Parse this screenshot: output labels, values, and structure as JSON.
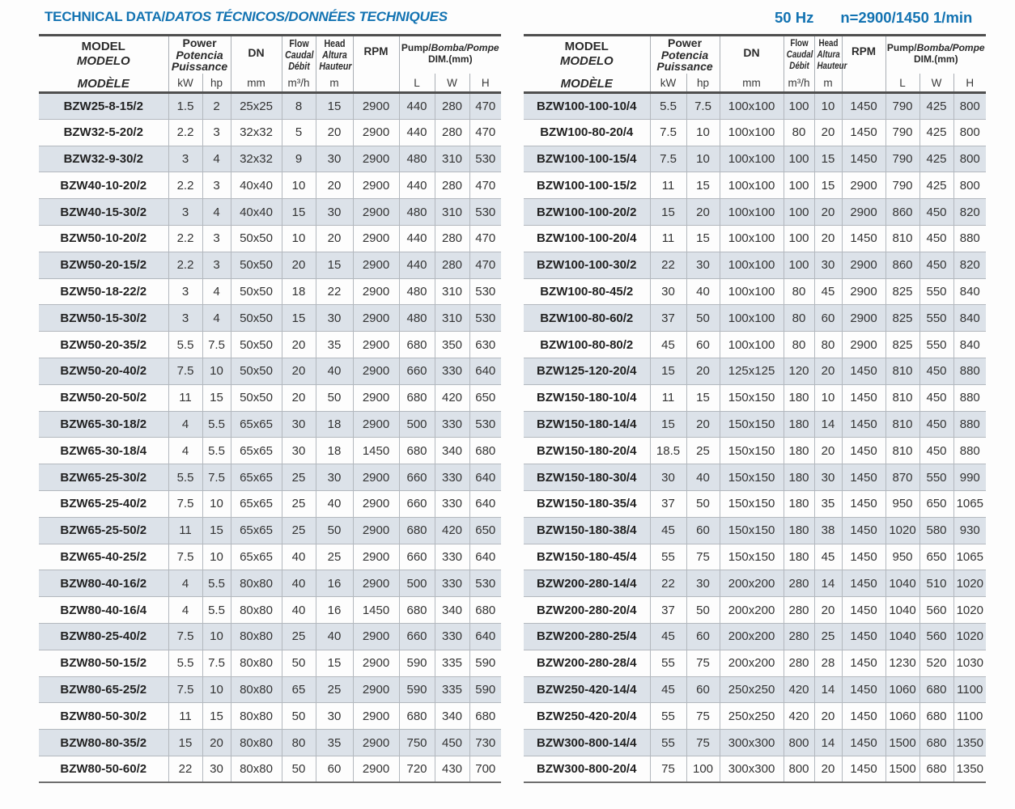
{
  "title": {
    "en": "TECHNICAL DATA/",
    "intl": "DATOS TÉCNICOS/DONNÉES TECHNIQUES"
  },
  "frequency": "50 Hz",
  "speed": "n=2900/1450 1/min",
  "columns": {
    "model": {
      "en": "MODEL",
      "es": "MODELO",
      "fr": "MODÈLE"
    },
    "power": {
      "en": "Power",
      "es": "Potencia",
      "fr": "Puissance",
      "unit_kw": "kW",
      "unit_hp": "hp"
    },
    "dn": {
      "label": "DN",
      "unit": "mm"
    },
    "flow": {
      "en": "Flow",
      "es": "Caudal",
      "fr": "Débit",
      "unit": "m³/h"
    },
    "head": {
      "en": "Head",
      "es": "Altura",
      "fr": "Hauteur",
      "unit": "m"
    },
    "rpm": {
      "label": "RPM"
    },
    "dim": {
      "line1_en": "Pump/",
      "line1_intl": "Bomba/Pompe",
      "line2": "DIM.(mm)",
      "unit_l": "L",
      "unit_w": "W",
      "unit_h": "H"
    }
  },
  "tables": {
    "left": {
      "rows": [
        [
          "BZW25-8-15/2",
          "1.5",
          "2",
          "25x25",
          "8",
          "15",
          "2900",
          "440",
          "280",
          "470"
        ],
        [
          "BZW32-5-20/2",
          "2.2",
          "3",
          "32x32",
          "5",
          "20",
          "2900",
          "440",
          "280",
          "470"
        ],
        [
          "BZW32-9-30/2",
          "3",
          "4",
          "32x32",
          "9",
          "30",
          "2900",
          "480",
          "310",
          "530"
        ],
        [
          "BZW40-10-20/2",
          "2.2",
          "3",
          "40x40",
          "10",
          "20",
          "2900",
          "440",
          "280",
          "470"
        ],
        [
          "BZW40-15-30/2",
          "3",
          "4",
          "40x40",
          "15",
          "30",
          "2900",
          "480",
          "310",
          "530"
        ],
        [
          "BZW50-10-20/2",
          "2.2",
          "3",
          "50x50",
          "10",
          "20",
          "2900",
          "440",
          "280",
          "470"
        ],
        [
          "BZW50-20-15/2",
          "2.2",
          "3",
          "50x50",
          "20",
          "15",
          "2900",
          "440",
          "280",
          "470"
        ],
        [
          "BZW50-18-22/2",
          "3",
          "4",
          "50x50",
          "18",
          "22",
          "2900",
          "480",
          "310",
          "530"
        ],
        [
          "BZW50-15-30/2",
          "3",
          "4",
          "50x50",
          "15",
          "30",
          "2900",
          "480",
          "310",
          "530"
        ],
        [
          "BZW50-20-35/2",
          "5.5",
          "7.5",
          "50x50",
          "20",
          "35",
          "2900",
          "680",
          "350",
          "630"
        ],
        [
          "BZW50-20-40/2",
          "7.5",
          "10",
          "50x50",
          "20",
          "40",
          "2900",
          "660",
          "330",
          "640"
        ],
        [
          "BZW50-20-50/2",
          "11",
          "15",
          "50x50",
          "20",
          "50",
          "2900",
          "680",
          "420",
          "650"
        ],
        [
          "BZW65-30-18/2",
          "4",
          "5.5",
          "65x65",
          "30",
          "18",
          "2900",
          "500",
          "330",
          "530"
        ],
        [
          "BZW65-30-18/4",
          "4",
          "5.5",
          "65x65",
          "30",
          "18",
          "1450",
          "680",
          "340",
          "680"
        ],
        [
          "BZW65-25-30/2",
          "5.5",
          "7.5",
          "65x65",
          "25",
          "30",
          "2900",
          "660",
          "330",
          "640"
        ],
        [
          "BZW65-25-40/2",
          "7.5",
          "10",
          "65x65",
          "25",
          "40",
          "2900",
          "660",
          "330",
          "640"
        ],
        [
          "BZW65-25-50/2",
          "11",
          "15",
          "65x65",
          "25",
          "50",
          "2900",
          "680",
          "420",
          "650"
        ],
        [
          "BZW65-40-25/2",
          "7.5",
          "10",
          "65x65",
          "40",
          "25",
          "2900",
          "660",
          "330",
          "640"
        ],
        [
          "BZW80-40-16/2",
          "4",
          "5.5",
          "80x80",
          "40",
          "16",
          "2900",
          "500",
          "330",
          "530"
        ],
        [
          "BZW80-40-16/4",
          "4",
          "5.5",
          "80x80",
          "40",
          "16",
          "1450",
          "680",
          "340",
          "680"
        ],
        [
          "BZW80-25-40/2",
          "7.5",
          "10",
          "80x80",
          "25",
          "40",
          "2900",
          "660",
          "330",
          "640"
        ],
        [
          "BZW80-50-15/2",
          "5.5",
          "7.5",
          "80x80",
          "50",
          "15",
          "2900",
          "590",
          "335",
          "590"
        ],
        [
          "BZW80-65-25/2",
          "7.5",
          "10",
          "80x80",
          "65",
          "25",
          "2900",
          "590",
          "335",
          "590"
        ],
        [
          "BZW80-50-30/2",
          "11",
          "15",
          "80x80",
          "50",
          "30",
          "2900",
          "680",
          "340",
          "680"
        ],
        [
          "BZW80-80-35/2",
          "15",
          "20",
          "80x80",
          "80",
          "35",
          "2900",
          "750",
          "450",
          "730"
        ],
        [
          "BZW80-50-60/2",
          "22",
          "30",
          "80x80",
          "50",
          "60",
          "2900",
          "720",
          "430",
          "700"
        ]
      ]
    },
    "right": {
      "rows": [
        [
          "BZW100-100-10/4",
          "5.5",
          "7.5",
          "100x100",
          "100",
          "10",
          "1450",
          "790",
          "425",
          "800"
        ],
        [
          "BZW100-80-20/4",
          "7.5",
          "10",
          "100x100",
          "80",
          "20",
          "1450",
          "790",
          "425",
          "800"
        ],
        [
          "BZW100-100-15/4",
          "7.5",
          "10",
          "100x100",
          "100",
          "15",
          "1450",
          "790",
          "425",
          "800"
        ],
        [
          "BZW100-100-15/2",
          "11",
          "15",
          "100x100",
          "100",
          "15",
          "2900",
          "790",
          "425",
          "800"
        ],
        [
          "BZW100-100-20/2",
          "15",
          "20",
          "100x100",
          "100",
          "20",
          "2900",
          "860",
          "450",
          "820"
        ],
        [
          "BZW100-100-20/4",
          "11",
          "15",
          "100x100",
          "100",
          "20",
          "1450",
          "810",
          "450",
          "880"
        ],
        [
          "BZW100-100-30/2",
          "22",
          "30",
          "100x100",
          "100",
          "30",
          "2900",
          "860",
          "450",
          "820"
        ],
        [
          "BZW100-80-45/2",
          "30",
          "40",
          "100x100",
          "80",
          "45",
          "2900",
          "825",
          "550",
          "840"
        ],
        [
          "BZW100-80-60/2",
          "37",
          "50",
          "100x100",
          "80",
          "60",
          "2900",
          "825",
          "550",
          "840"
        ],
        [
          "BZW100-80-80/2",
          "45",
          "60",
          "100x100",
          "80",
          "80",
          "2900",
          "825",
          "550",
          "840"
        ],
        [
          "BZW125-120-20/4",
          "15",
          "20",
          "125x125",
          "120",
          "20",
          "1450",
          "810",
          "450",
          "880"
        ],
        [
          "BZW150-180-10/4",
          "11",
          "15",
          "150x150",
          "180",
          "10",
          "1450",
          "810",
          "450",
          "880"
        ],
        [
          "BZW150-180-14/4",
          "15",
          "20",
          "150x150",
          "180",
          "14",
          "1450",
          "810",
          "450",
          "880"
        ],
        [
          "BZW150-180-20/4",
          "18.5",
          "25",
          "150x150",
          "180",
          "20",
          "1450",
          "810",
          "450",
          "880"
        ],
        [
          "BZW150-180-30/4",
          "30",
          "40",
          "150x150",
          "180",
          "30",
          "1450",
          "870",
          "550",
          "990"
        ],
        [
          "BZW150-180-35/4",
          "37",
          "50",
          "150x150",
          "180",
          "35",
          "1450",
          "950",
          "650",
          "1065"
        ],
        [
          "BZW150-180-38/4",
          "45",
          "60",
          "150x150",
          "180",
          "38",
          "1450",
          "1020",
          "580",
          "930"
        ],
        [
          "BZW150-180-45/4",
          "55",
          "75",
          "150x150",
          "180",
          "45",
          "1450",
          "950",
          "650",
          "1065"
        ],
        [
          "BZW200-280-14/4",
          "22",
          "30",
          "200x200",
          "280",
          "14",
          "1450",
          "1040",
          "510",
          "1020"
        ],
        [
          "BZW200-280-20/4",
          "37",
          "50",
          "200x200",
          "280",
          "20",
          "1450",
          "1040",
          "560",
          "1020"
        ],
        [
          "BZW200-280-25/4",
          "45",
          "60",
          "200x200",
          "280",
          "25",
          "1450",
          "1040",
          "560",
          "1020"
        ],
        [
          "BZW200-280-28/4",
          "55",
          "75",
          "200x200",
          "280",
          "28",
          "1450",
          "1230",
          "520",
          "1030"
        ],
        [
          "BZW250-420-14/4",
          "45",
          "60",
          "250x250",
          "420",
          "14",
          "1450",
          "1060",
          "680",
          "1100"
        ],
        [
          "BZW250-420-20/4",
          "55",
          "75",
          "250x250",
          "420",
          "20",
          "1450",
          "1060",
          "680",
          "1100"
        ],
        [
          "BZW300-800-14/4",
          "55",
          "75",
          "300x300",
          "800",
          "14",
          "1450",
          "1500",
          "680",
          "1350"
        ],
        [
          "BZW300-800-20/4",
          "75",
          "100",
          "300x300",
          "800",
          "20",
          "1450",
          "1500",
          "680",
          "1350"
        ]
      ]
    }
  },
  "colors": {
    "accent_blue": "#1373b2",
    "row_shade": "#dce2e9",
    "border_dark": "#4f4f4f",
    "border_light": "#b3b8be"
  }
}
